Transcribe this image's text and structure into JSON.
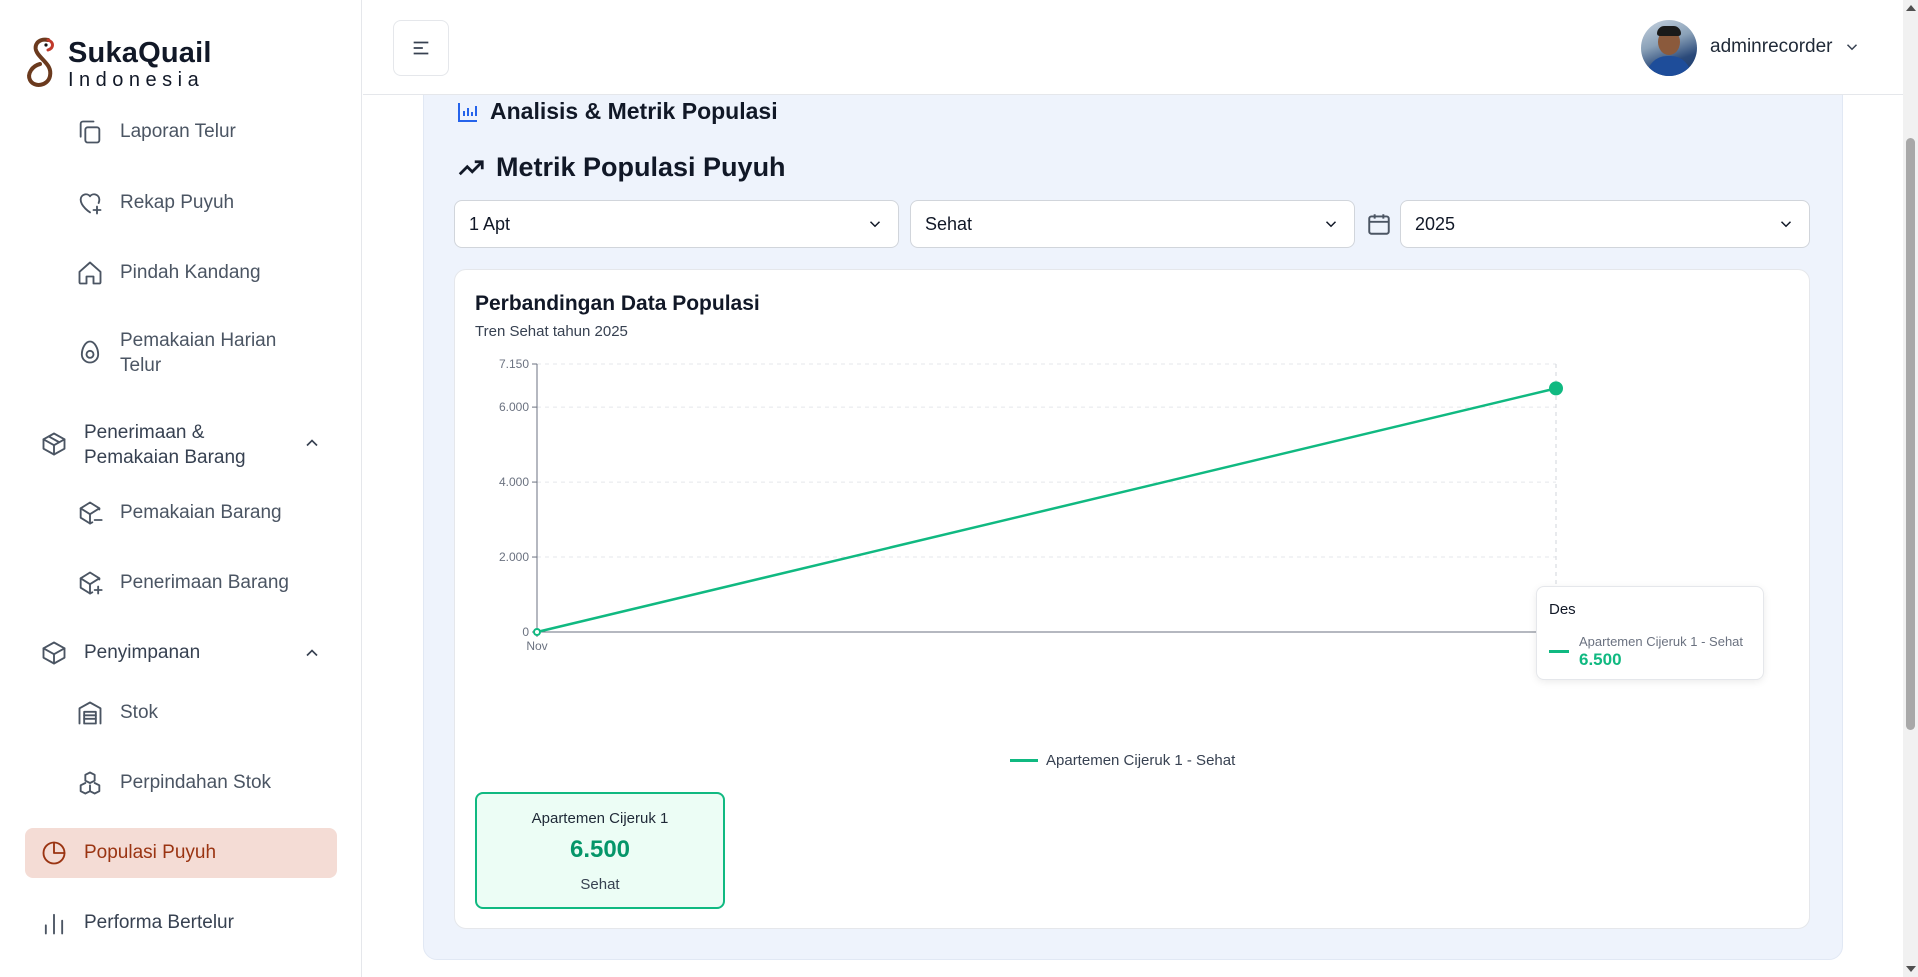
{
  "brand": {
    "title": "SukaQuail",
    "subtitle": "Indonesia"
  },
  "sidebar": {
    "items": [
      {
        "label": "Laporan Telur",
        "icon": "copy-icon"
      },
      {
        "label": "Rekap Puyuh",
        "icon": "heart-plus-icon"
      },
      {
        "label": "Pindah Kandang",
        "icon": "home-icon"
      },
      {
        "label": "Pemakaian Harian Telur",
        "icon": "egg-icon"
      },
      {
        "label": "Penerimaan & Pemakaian Barang",
        "icon": "package-icon"
      },
      {
        "label": "Pemakaian Barang",
        "icon": "package-minus-icon"
      },
      {
        "label": "Penerimaan Barang",
        "icon": "package-plus-icon"
      },
      {
        "label": "Penyimpanan",
        "icon": "box-icon"
      },
      {
        "label": "Stok",
        "icon": "warehouse-icon"
      },
      {
        "label": "Perpindahan Stok",
        "icon": "boxes-icon"
      },
      {
        "label": "Populasi Puyuh",
        "icon": "pie-chart-icon",
        "active": true
      },
      {
        "label": "Performa Bertelur",
        "icon": "bar-chart-icon"
      }
    ]
  },
  "header": {
    "username": "adminrecorder"
  },
  "main": {
    "section_title": "Analisis & Metrik Populasi",
    "metric_title": "Metrik Populasi Puyuh",
    "filters": {
      "cage": "1 Apt",
      "status": "Sehat",
      "year": "2025"
    },
    "card_title": "Perbandingan Data Populasi",
    "card_subtitle": "Tren Sehat tahun 2025",
    "tooltip": {
      "title": "Des",
      "series": "Apartemen Cijeruk 1 - Sehat",
      "value": "6.500"
    },
    "legend": "Apartemen Cijeruk 1 - Sehat",
    "stat": {
      "name": "Apartemen Cijeruk 1",
      "value": "6.500",
      "status": "Sehat"
    }
  },
  "colors": {
    "accent": "#10b981",
    "active_bg": "#f4dcd5",
    "panel_bg": "#eef3fc"
  },
  "chart_data": {
    "type": "line",
    "title": "Perbandingan Data Populasi",
    "subtitle": "Tren Sehat tahun 2025",
    "x": [
      "Nov",
      "Des"
    ],
    "series": [
      {
        "name": "Apartemen Cijeruk 1 - Sehat",
        "values": [
          0,
          6500
        ],
        "color": "#10b981"
      }
    ],
    "yticks": [
      0,
      2000,
      4000,
      6000,
      7150
    ],
    "ytick_labels": [
      "0",
      "2.000",
      "4.000",
      "6.000",
      "7.150"
    ],
    "ylim": [
      0,
      7150
    ],
    "grid": true,
    "legend_position": "bottom"
  }
}
